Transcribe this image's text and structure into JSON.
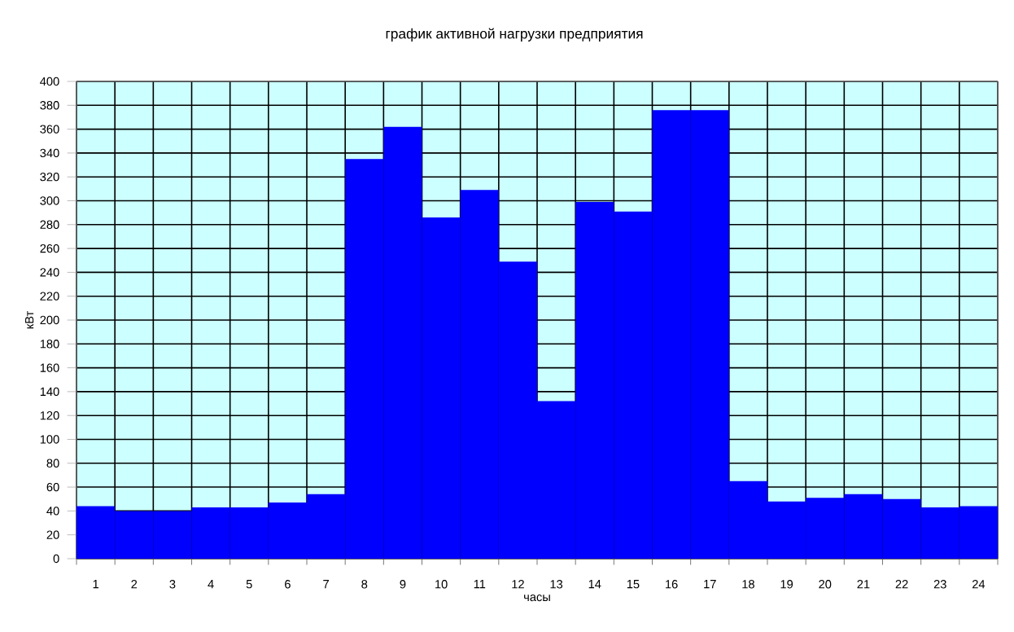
{
  "chart_data": {
    "type": "bar",
    "title": "график активной нагрузки предприятия",
    "xlabel": "часы",
    "ylabel": "кВт",
    "categories": [
      "1",
      "2",
      "3",
      "4",
      "5",
      "6",
      "7",
      "8",
      "9",
      "10",
      "11",
      "12",
      "13",
      "14",
      "15",
      "16",
      "17",
      "18",
      "19",
      "20",
      "21",
      "22",
      "23",
      "24"
    ],
    "values": [
      44,
      40,
      40,
      43,
      43,
      47,
      54,
      335,
      362,
      286,
      309,
      249,
      132,
      299,
      291,
      376,
      376,
      65,
      48,
      51,
      54,
      50,
      43,
      44
    ],
    "color": "#0000ff",
    "ylim": [
      0,
      400
    ],
    "yticks": [
      0,
      20,
      40,
      60,
      80,
      100,
      120,
      140,
      160,
      180,
      200,
      220,
      240,
      260,
      280,
      300,
      320,
      340,
      360,
      380,
      400
    ],
    "grid": true
  }
}
